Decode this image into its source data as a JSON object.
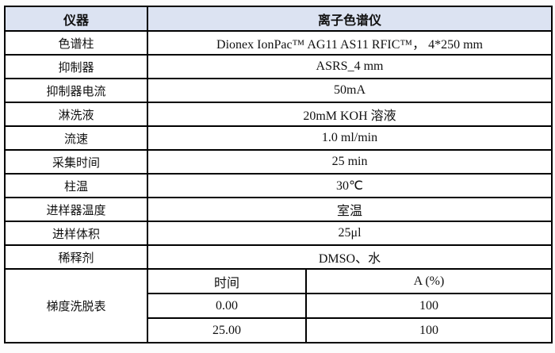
{
  "table": {
    "header": {
      "col1": "仪器",
      "col2": "离子色谱仪"
    },
    "rows": [
      {
        "label": "色谱柱",
        "value": "Dionex IonPac™ AG11 AS11 RFIC™， 4*250 mm"
      },
      {
        "label": "抑制器",
        "value": "ASRS_4 mm"
      },
      {
        "label": "抑制器电流",
        "value": "50mA"
      },
      {
        "label": "淋洗液",
        "value": "20mM KOH 溶液"
      },
      {
        "label": "流速",
        "value": "1.0 ml/min"
      },
      {
        "label": "采集时间",
        "value": "25 min"
      },
      {
        "label": "柱温",
        "value": "30℃"
      },
      {
        "label": "进样器温度",
        "value": "室温"
      },
      {
        "label": "进样体积",
        "value": "25μl"
      },
      {
        "label": "稀释剂",
        "value": "DMSO、水"
      }
    ],
    "gradient": {
      "label": "梯度洗脱表",
      "columns": {
        "time": "时间",
        "a_percent": "A (%)"
      },
      "rows": [
        {
          "time": "0.00",
          "a_percent": "100"
        },
        {
          "time": "25.00",
          "a_percent": "100"
        }
      ]
    }
  },
  "colors": {
    "header_bg": "#dce3f2",
    "border": "#000000"
  }
}
